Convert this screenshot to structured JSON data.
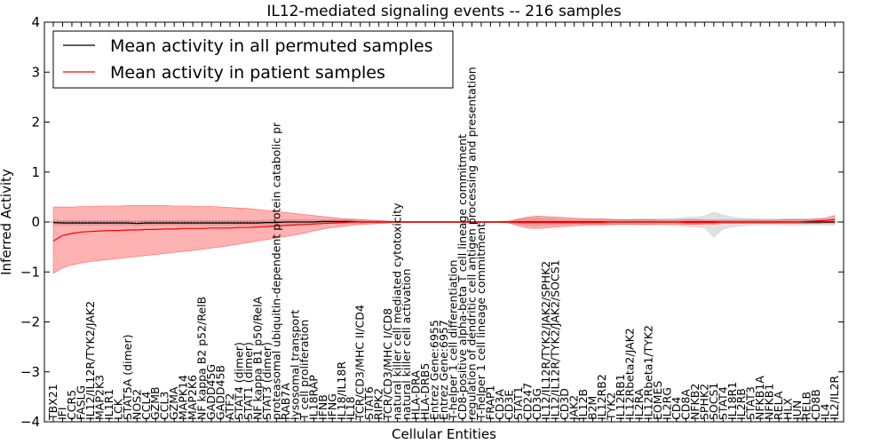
{
  "chart_data": {
    "type": "line",
    "title": "IL12-mediated signaling events -- 216 samples",
    "xlabel": "Cellular Entities",
    "ylabel": "Inferred Activity",
    "ylim": [
      -4,
      4
    ],
    "yticks": [
      -4,
      -3,
      -2,
      -1,
      0,
      1,
      2,
      3,
      4
    ],
    "grid": false,
    "legend_position": "top-left",
    "categories": [
      "TBX21",
      "IFI",
      "CCR5",
      "FASLG",
      "IL12/IL12R/TYK2/JAK2",
      "MAP2K3",
      "IL1R1",
      "LCK",
      "STAT5A (dimer)",
      "NOS2",
      "CCL4",
      "GZMB",
      "CCL3",
      "GZMA",
      "MAPK14",
      "MAP2K6",
      "NF kappa B2 p52/RelB",
      "GADD45G",
      "GADD45B",
      "ATF2",
      "STAT4 (dimer)",
      "STAT1 (dimer)",
      "NF kappa B1 p50/RelA",
      "STAT3 (dimer)",
      "proteasomal ubiquitin-dependent protein catabolic pr",
      "RAB7A",
      "lysosomal transport",
      "T cell proliferation",
      "IL18RAP",
      "IFNB",
      "IFNG",
      "IL18/IL18R",
      "IL18",
      "TCR/CD3/MHC II/CD4",
      "STAT6",
      "RIPK2",
      "TCR/CD3/MHC I/CD8",
      "natural killer cell mediated cytotoxicity",
      "natural killer cell activation",
      "HLA-DRA",
      "HLA-DRB5",
      "Entrez Gene:6955",
      "Entrez Gene:6957",
      "T-helper 1 cell differentiation",
      "CD8-positive alpha-beta T cell lineage commitment",
      "regulation of dendritic cell antigen processing and presentation",
      "T-helper 1 cell lineage commitment",
      "FRAP1",
      "CD3A",
      "CD3E",
      "STAT1",
      "CD247",
      "CD3G",
      "IL12/IL12R/TYK2/JAK2/SPHK2",
      "IL12/IL12R/TYK2/JAK2/SOCS1",
      "CD3D",
      "JAK2",
      "IL12B",
      "B2M",
      "IL12RB2",
      "TYK2",
      "IL12RB1",
      "IL12Rbeta2/JAK2",
      "IL2RA",
      "IL12Rbeta1/TYK2",
      "EOMES",
      "IL2RG",
      "CD4",
      "CD8A",
      "NFKB2",
      "SPHK2",
      "SOCS1",
      "STAT4",
      "IL18R1",
      "IL2RB",
      "STAT3",
      "NFKB1A",
      "NFKB1",
      "RELA",
      "HLX",
      "JUN",
      "RELB",
      "CD8B",
      "IL4",
      "IL2/IL2R"
    ],
    "series": [
      {
        "name": "Mean activity in all permuted samples",
        "color": "#000000",
        "values": [
          -0.01,
          -0.02,
          -0.02,
          -0.02,
          -0.02,
          -0.02,
          -0.02,
          -0.02,
          -0.02,
          -0.03,
          -0.02,
          -0.02,
          -0.02,
          -0.02,
          -0.02,
          -0.02,
          -0.02,
          -0.02,
          -0.02,
          -0.02,
          -0.02,
          -0.02,
          -0.02,
          -0.01,
          -0.01,
          0.0,
          0.0,
          0.0,
          0.0,
          0.01,
          0.01,
          0.01,
          0.01,
          0.0,
          0.0,
          0.0,
          0.0,
          0.0,
          0.0,
          0.0,
          0.0,
          0.0,
          0.0,
          0.0,
          0.0,
          0.0,
          0.0,
          0.0,
          0.0,
          0.0,
          0.0,
          0.0,
          0.0,
          0.0,
          0.0,
          0.0,
          0.0,
          0.0,
          0.0,
          0.0,
          0.0,
          0.0,
          0.0,
          0.0,
          0.0,
          0.0,
          0.0,
          0.0,
          0.0,
          0.0,
          0.0,
          0.0,
          0.0,
          0.0,
          0.0,
          0.0,
          0.0,
          0.0,
          0.0,
          0.0,
          0.0,
          0.0,
          0.0,
          0.0,
          0.0
        ],
        "band_low": [
          -0.06,
          -0.07,
          -0.07,
          -0.07,
          -0.07,
          -0.07,
          -0.07,
          -0.07,
          -0.07,
          -0.08,
          -0.07,
          -0.07,
          -0.07,
          -0.07,
          -0.07,
          -0.07,
          -0.07,
          -0.07,
          -0.07,
          -0.07,
          -0.07,
          -0.07,
          -0.07,
          -0.06,
          -0.06,
          -0.05,
          -0.05,
          -0.05,
          -0.04,
          -0.03,
          -0.03,
          -0.03,
          -0.03,
          -0.03,
          -0.02,
          -0.02,
          -0.02,
          -0.01,
          -0.01,
          -0.01,
          -0.01,
          -0.01,
          -0.01,
          -0.01,
          -0.01,
          -0.01,
          -0.01,
          -0.01,
          -0.01,
          -0.02,
          -0.05,
          -0.07,
          -0.08,
          -0.07,
          -0.06,
          -0.05,
          -0.05,
          -0.05,
          -0.05,
          -0.06,
          -0.06,
          -0.05,
          -0.05,
          -0.06,
          -0.06,
          -0.06,
          -0.07,
          -0.08,
          -0.09,
          -0.1,
          -0.12,
          -0.3,
          -0.14,
          -0.1,
          -0.08,
          -0.07,
          -0.06,
          -0.06,
          -0.06,
          -0.07,
          -0.07,
          -0.06,
          -0.06,
          -0.06,
          -0.06
        ],
        "band_high": [
          0.04,
          0.03,
          0.03,
          0.03,
          0.03,
          0.03,
          0.03,
          0.03,
          0.03,
          0.02,
          0.03,
          0.03,
          0.03,
          0.03,
          0.03,
          0.03,
          0.03,
          0.03,
          0.03,
          0.03,
          0.03,
          0.03,
          0.03,
          0.04,
          0.04,
          0.05,
          0.05,
          0.05,
          0.05,
          0.05,
          0.05,
          0.05,
          0.05,
          0.04,
          0.03,
          0.02,
          0.02,
          0.01,
          0.01,
          0.01,
          0.01,
          0.01,
          0.01,
          0.01,
          0.01,
          0.01,
          0.01,
          0.01,
          0.01,
          0.02,
          0.05,
          0.07,
          0.08,
          0.07,
          0.06,
          0.05,
          0.05,
          0.05,
          0.05,
          0.06,
          0.06,
          0.05,
          0.05,
          0.06,
          0.06,
          0.06,
          0.07,
          0.08,
          0.09,
          0.1,
          0.12,
          0.2,
          0.14,
          0.1,
          0.08,
          0.07,
          0.06,
          0.06,
          0.06,
          0.07,
          0.07,
          0.06,
          0.06,
          0.06,
          0.06
        ]
      },
      {
        "name": "Mean activity in patient samples",
        "color": "#ff0000",
        "values": [
          -0.38,
          -0.27,
          -0.23,
          -0.2,
          -0.19,
          -0.18,
          -0.17,
          -0.17,
          -0.16,
          -0.16,
          -0.15,
          -0.15,
          -0.14,
          -0.14,
          -0.13,
          -0.13,
          -0.13,
          -0.12,
          -0.12,
          -0.12,
          -0.11,
          -0.11,
          -0.1,
          -0.09,
          -0.08,
          -0.07,
          -0.06,
          -0.05,
          -0.04,
          -0.03,
          -0.02,
          -0.01,
          0.0,
          0.0,
          0.0,
          0.0,
          0.0,
          0.0,
          0.0,
          0.0,
          0.0,
          0.0,
          0.0,
          0.0,
          0.0,
          0.0,
          0.0,
          0.0,
          0.0,
          0.0,
          -0.01,
          -0.01,
          -0.01,
          -0.01,
          -0.01,
          -0.01,
          -0.01,
          -0.01,
          -0.01,
          -0.01,
          0.0,
          0.0,
          0.0,
          0.0,
          0.0,
          0.0,
          0.0,
          0.0,
          -0.01,
          -0.01,
          -0.01,
          -0.01,
          0.0,
          0.0,
          0.0,
          0.0,
          0.0,
          0.0,
          0.0,
          0.0,
          0.0,
          0.01,
          0.02,
          0.03,
          0.05
        ],
        "band_low": [
          -1.03,
          -0.92,
          -0.86,
          -0.82,
          -0.79,
          -0.77,
          -0.75,
          -0.73,
          -0.71,
          -0.69,
          -0.67,
          -0.65,
          -0.63,
          -0.61,
          -0.59,
          -0.57,
          -0.55,
          -0.52,
          -0.5,
          -0.47,
          -0.44,
          -0.41,
          -0.38,
          -0.35,
          -0.32,
          -0.29,
          -0.26,
          -0.22,
          -0.18,
          -0.14,
          -0.11,
          -0.09,
          -0.07,
          -0.05,
          -0.04,
          -0.03,
          -0.02,
          -0.01,
          -0.01,
          -0.01,
          -0.01,
          -0.01,
          -0.01,
          -0.01,
          -0.01,
          -0.01,
          -0.01,
          -0.01,
          -0.01,
          -0.02,
          -0.08,
          -0.12,
          -0.13,
          -0.12,
          -0.1,
          -0.09,
          -0.08,
          -0.07,
          -0.06,
          -0.06,
          -0.05,
          -0.05,
          -0.05,
          -0.05,
          -0.05,
          -0.04,
          -0.04,
          -0.04,
          -0.05,
          -0.05,
          -0.04,
          -0.04,
          -0.03,
          -0.03,
          -0.03,
          -0.03,
          -0.03,
          -0.03,
          -0.03,
          -0.03,
          -0.03,
          -0.03,
          -0.03,
          -0.02,
          -0.02
        ],
        "band_high": [
          0.3,
          0.3,
          0.3,
          0.31,
          0.31,
          0.32,
          0.32,
          0.32,
          0.33,
          0.33,
          0.33,
          0.33,
          0.33,
          0.32,
          0.32,
          0.32,
          0.31,
          0.31,
          0.3,
          0.29,
          0.28,
          0.27,
          0.25,
          0.23,
          0.21,
          0.19,
          0.17,
          0.15,
          0.13,
          0.11,
          0.09,
          0.07,
          0.06,
          0.05,
          0.04,
          0.03,
          0.02,
          0.01,
          0.01,
          0.01,
          0.01,
          0.01,
          0.01,
          0.01,
          0.01,
          0.01,
          0.01,
          0.01,
          0.01,
          0.02,
          0.06,
          0.1,
          0.12,
          0.11,
          0.1,
          0.09,
          0.08,
          0.07,
          0.06,
          0.06,
          0.05,
          0.05,
          0.05,
          0.05,
          0.05,
          0.04,
          0.04,
          0.04,
          0.05,
          0.05,
          0.04,
          0.04,
          0.04,
          0.04,
          0.04,
          0.04,
          0.04,
          0.04,
          0.04,
          0.05,
          0.05,
          0.05,
          0.06,
          0.08,
          0.13
        ]
      }
    ]
  }
}
